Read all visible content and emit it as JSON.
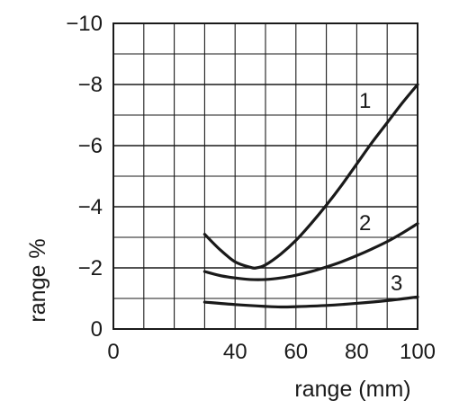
{
  "chart_data": {
    "type": "line",
    "title": "",
    "xlabel": "range (mm)",
    "ylabel": "range %",
    "xlim": [
      0,
      100
    ],
    "ylim": [
      0,
      -10
    ],
    "x_ticks": [
      0,
      40,
      60,
      80,
      100
    ],
    "x_tick_labels": [
      "0",
      "40",
      "60",
      "80",
      "100"
    ],
    "y_ticks": [
      0,
      -2,
      -4,
      -6,
      -8,
      -10
    ],
    "y_tick_labels": [
      "0",
      "−2",
      "−4",
      "−6",
      "−8",
      "−10"
    ],
    "grid": true,
    "series": [
      {
        "name": "1",
        "x": [
          30,
          35,
          40,
          45,
          47,
          50,
          55,
          60,
          65,
          70,
          75,
          80,
          85,
          90,
          95,
          100
        ],
        "y": [
          -3.1,
          -2.6,
          -2.2,
          -2.02,
          -2.0,
          -2.1,
          -2.45,
          -2.9,
          -3.45,
          -4.05,
          -4.7,
          -5.4,
          -6.1,
          -6.75,
          -7.4,
          -8.0
        ]
      },
      {
        "name": "2",
        "x": [
          30,
          35,
          40,
          45,
          50,
          55,
          60,
          65,
          70,
          75,
          80,
          85,
          90,
          95,
          100
        ],
        "y": [
          -1.88,
          -1.75,
          -1.67,
          -1.62,
          -1.62,
          -1.67,
          -1.76,
          -1.88,
          -2.03,
          -2.2,
          -2.4,
          -2.62,
          -2.86,
          -3.14,
          -3.45
        ]
      },
      {
        "name": "3",
        "x": [
          30,
          40,
          50,
          55,
          60,
          70,
          80,
          90,
          100
        ],
        "y": [
          -0.88,
          -0.8,
          -0.74,
          -0.72,
          -0.73,
          -0.77,
          -0.84,
          -0.93,
          -1.05
        ]
      }
    ]
  }
}
